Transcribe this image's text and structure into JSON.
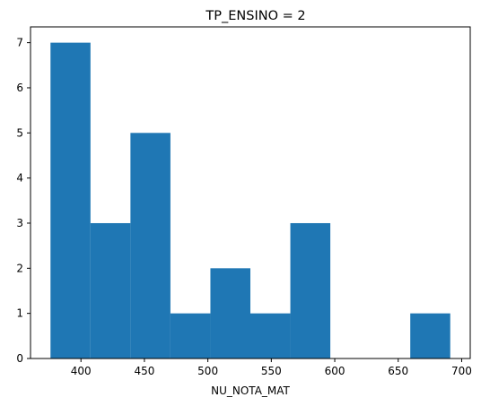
{
  "chart_data": {
    "type": "bar",
    "title": "TP_ENSINO = 2",
    "xlabel": "NU_NOTA_MAT",
    "ylabel": "",
    "bins": [
      {
        "start": 376.0,
        "end": 407.5,
        "count": 7
      },
      {
        "start": 407.5,
        "end": 439.0,
        "count": 3
      },
      {
        "start": 439.0,
        "end": 470.5,
        "count": 5
      },
      {
        "start": 470.5,
        "end": 502.0,
        "count": 1
      },
      {
        "start": 502.0,
        "end": 533.5,
        "count": 2
      },
      {
        "start": 533.5,
        "end": 565.0,
        "count": 1
      },
      {
        "start": 565.0,
        "end": 596.5,
        "count": 3
      },
      {
        "start": 596.5,
        "end": 628.0,
        "count": 0
      },
      {
        "start": 628.0,
        "end": 659.5,
        "count": 0
      },
      {
        "start": 659.5,
        "end": 691.0,
        "count": 1
      }
    ],
    "xlim": [
      360.25,
      706.75
    ],
    "ylim": [
      0,
      7.35
    ],
    "xticks": [
      "400",
      "450",
      "500",
      "550",
      "600",
      "650",
      "700"
    ],
    "yticks": [
      "0",
      "1",
      "2",
      "3",
      "4",
      "5",
      "6",
      "7"
    ],
    "bar_color": "#1f77b4",
    "grid": false,
    "legend": "none"
  }
}
